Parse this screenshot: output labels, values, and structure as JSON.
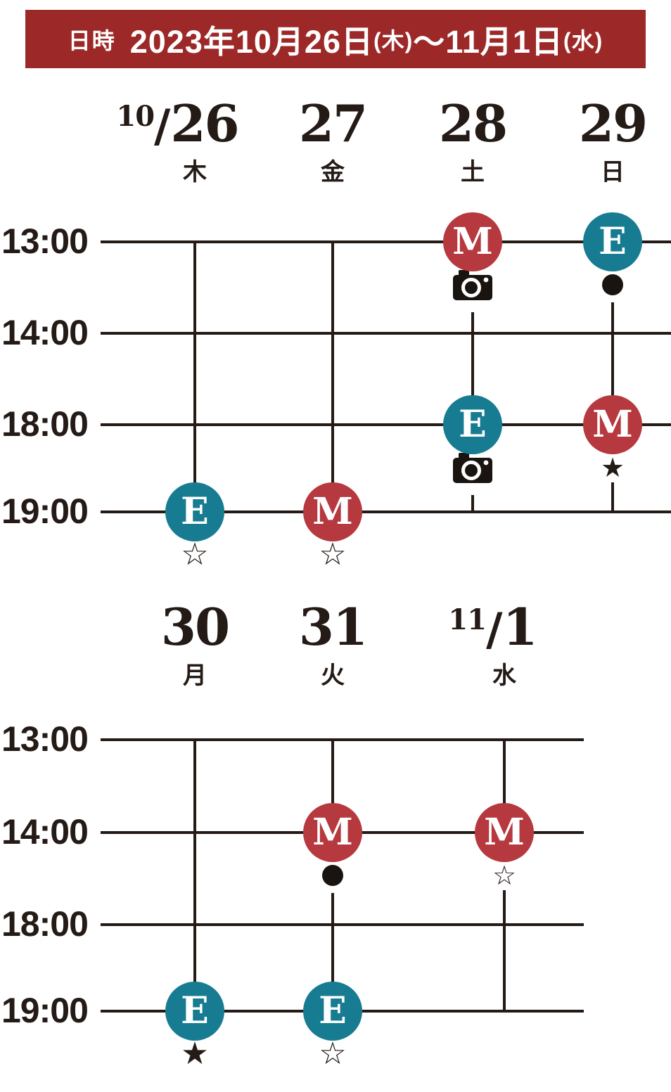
{
  "banner": {
    "label": "日時",
    "date_parts": [
      {
        "text": "2023年10月26日",
        "small": false
      },
      {
        "text": "(木)",
        "small": true
      },
      {
        "text": "～",
        "small": false
      },
      {
        "text": "11月1日",
        "small": false
      },
      {
        "text": "(水)",
        "small": true
      }
    ]
  },
  "colors": {
    "banner_bg": "#9c2928",
    "matinee_red": "#b6393f",
    "evening_teal": "#177c92",
    "ink": "#241a16",
    "icon_black": "#1a1410",
    "white": "#ffffff"
  },
  "icons": {
    "filled_star": "★",
    "outline_star": "☆",
    "camera": "camera-glyph",
    "circle": "filled-dot"
  },
  "grids": [
    {
      "name": "week1",
      "times": [
        "13:00",
        "14:00",
        "18:00",
        "19:00"
      ],
      "columns": [
        {
          "prefix": "10",
          "day": "26",
          "weekday": "木"
        },
        {
          "prefix": "",
          "day": "27",
          "weekday": "金"
        },
        {
          "prefix": "",
          "day": "28",
          "weekday": "土"
        },
        {
          "prefix": "",
          "day": "29",
          "weekday": "日"
        }
      ],
      "events": [
        {
          "col": 2,
          "row": 0,
          "type": "M",
          "symbol": "camera"
        },
        {
          "col": 3,
          "row": 0,
          "type": "E",
          "symbol": "circle"
        },
        {
          "col": 2,
          "row": 2,
          "type": "E",
          "symbol": "camera"
        },
        {
          "col": 3,
          "row": 2,
          "type": "M",
          "symbol": "star_filled_boxed"
        },
        {
          "col": 0,
          "row": 3,
          "type": "E",
          "symbol": "star_outline"
        },
        {
          "col": 1,
          "row": 3,
          "type": "M",
          "symbol": "star_outline"
        }
      ]
    },
    {
      "name": "week2",
      "times": [
        "13:00",
        "14:00",
        "18:00",
        "19:00"
      ],
      "columns": [
        {
          "prefix": "",
          "day": "30",
          "weekday": "月"
        },
        {
          "prefix": "",
          "day": "31",
          "weekday": "火"
        },
        {
          "prefix": "11",
          "day": "1",
          "weekday": "水"
        }
      ],
      "events": [
        {
          "col": 1,
          "row": 1,
          "type": "M",
          "symbol": "circle"
        },
        {
          "col": 2,
          "row": 1,
          "type": "M",
          "symbol": "star_outline_boxed"
        },
        {
          "col": 0,
          "row": 3,
          "type": "E",
          "symbol": "star_filled"
        },
        {
          "col": 1,
          "row": 3,
          "type": "E",
          "symbol": "star_outline"
        }
      ]
    }
  ]
}
